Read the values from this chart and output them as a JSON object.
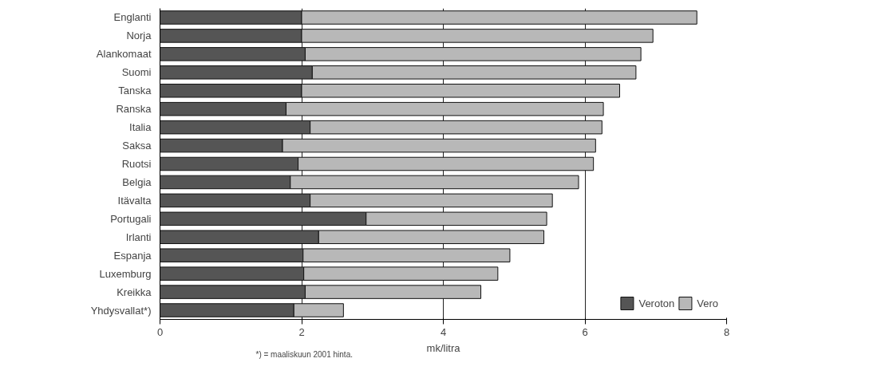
{
  "chart_data": {
    "type": "bar",
    "orientation": "horizontal",
    "stacked": true,
    "categories": [
      "Englanti",
      "Norja",
      "Alankomaat",
      "Suomi",
      "Tanska",
      "Ranska",
      "Italia",
      "Saksa",
      "Ruotsi",
      "Belgia",
      "Itävalta",
      "Portugali",
      "Irlanti",
      "Espanja",
      "Luxemburg",
      "Kreikka",
      "Yhdysvallat*)"
    ],
    "series": [
      {
        "name": "Veroton",
        "color": "#555555",
        "values": [
          2.0,
          2.0,
          2.05,
          2.15,
          2.0,
          1.78,
          2.12,
          1.73,
          1.95,
          1.84,
          2.12,
          2.91,
          2.24,
          2.02,
          2.03,
          2.05,
          1.89
        ]
      },
      {
        "name": "Vero",
        "color": "#b8b8b8",
        "values": [
          5.58,
          4.96,
          4.74,
          4.57,
          4.49,
          4.48,
          4.12,
          4.42,
          4.17,
          4.07,
          3.42,
          2.55,
          3.18,
          2.92,
          2.74,
          2.48,
          0.7
        ]
      }
    ],
    "xlim": [
      0,
      8
    ],
    "xticks": [
      0,
      2,
      4,
      6,
      8
    ],
    "xlabel": "mk/litra",
    "grid": "x",
    "legend": "bottom right",
    "annotations": [
      "*) = maaliskuun 2001 hinta."
    ]
  }
}
